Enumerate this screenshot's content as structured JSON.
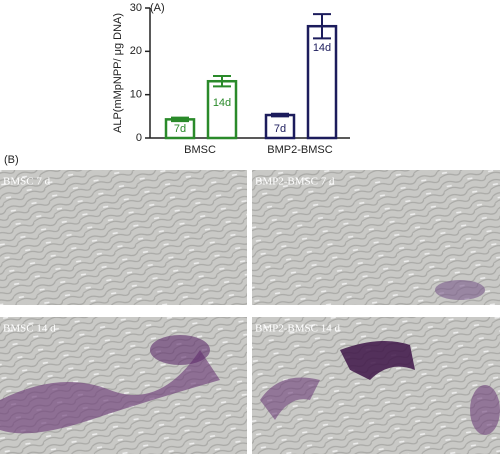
{
  "chart_data": {
    "type": "bar",
    "panel_label": "(A)",
    "y_label": "ALP(mMpNPP/ μg DNA)",
    "categories": [
      "BMSC",
      "BMP2-BMSC"
    ],
    "category_colors": [
      "#2a8a2a",
      "#1c1c5c"
    ],
    "series": [
      {
        "name": "7d",
        "values": [
          4.3,
          5.3
        ],
        "errors": [
          0.4,
          0.3
        ]
      },
      {
        "name": "14d",
        "values": [
          13.1,
          25.8
        ],
        "errors": [
          1.2,
          2.8
        ]
      }
    ],
    "ylim": [
      0,
      30
    ],
    "yticks": [
      0,
      10,
      20,
      30
    ]
  },
  "panel_b_label": "(B)",
  "micrographs": [
    "BMSC 7 d",
    "BMP2-BMSC 7 d",
    "BMSC 14 d",
    "BMP2-BMSC 14 d"
  ]
}
